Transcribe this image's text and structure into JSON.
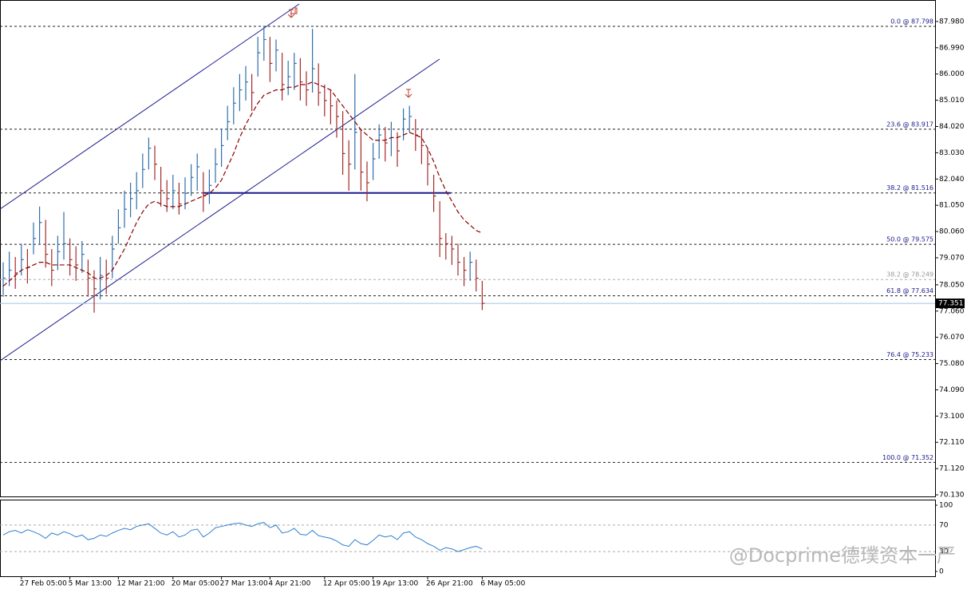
{
  "chart_data": [
    {
      "type": "ohlc",
      "categories": [
        null,
        null,
        null,
        "27 Feb 05:00",
        null,
        null,
        null,
        null,
        null,
        null,
        null,
        "5 Mar 13:00",
        null,
        null,
        null,
        null,
        null,
        null,
        null,
        "12 Mar 21:00",
        null,
        null,
        null,
        null,
        null,
        null,
        null,
        null,
        "20 Mar 05:00",
        null,
        null,
        null,
        null,
        null,
        null,
        null,
        "27 Mar 13:00",
        null,
        null,
        null,
        null,
        null,
        null,
        null,
        "4 Apr 21:00",
        null,
        null,
        null,
        null,
        null,
        null,
        null,
        null,
        "12 Apr 05:00",
        null,
        null,
        null,
        null,
        null,
        null,
        null,
        "19 Apr 13:00",
        null,
        null,
        null,
        null,
        null,
        null,
        null,
        null,
        "26 Apr 21:00",
        null,
        null,
        null,
        null,
        null,
        null,
        null,
        null,
        "6 May 05:00"
      ],
      "high": [
        78.9,
        79.3,
        79.1,
        79.6,
        79.4,
        80.4,
        81.0,
        80.5,
        79.4,
        79.9,
        80.8,
        79.8,
        79.5,
        79.7,
        79.0,
        78.6,
        79.1,
        79.0,
        79.9,
        80.9,
        81.6,
        81.9,
        82.3,
        83.0,
        83.6,
        83.3,
        82.5,
        82.0,
        82.2,
        81.9,
        82.1,
        82.6,
        83.0,
        82.3,
        82.4,
        83.2,
        83.9,
        84.8,
        85.5,
        86.0,
        86.3,
        86.0,
        87.4,
        87.798,
        87.4,
        87.3,
        86.8,
        86.5,
        86.8,
        86.6,
        86.1,
        87.7,
        86.4,
        85.6,
        85.4,
        85.0,
        84.6,
        83.5,
        86.0,
        83.9,
        82.7,
        83.4,
        84.1,
        84.0,
        84.2,
        83.8,
        84.7,
        84.8,
        84.3,
        83.9,
        83.2,
        82.2,
        81.2,
        80.0,
        79.9,
        79.6,
        79.1,
        79.3,
        79.0,
        78.2
      ],
      "low": [
        77.6,
        78.0,
        77.9,
        78.4,
        78.1,
        79.2,
        79.6,
        78.7,
        78.0,
        78.6,
        79.0,
        78.4,
        78.2,
        78.5,
        77.6,
        77.0,
        77.5,
        77.7,
        78.3,
        79.6,
        80.2,
        80.6,
        80.9,
        81.7,
        82.4,
        82.0,
        81.0,
        80.8,
        80.9,
        80.7,
        80.9,
        81.4,
        81.6,
        80.8,
        81.1,
        81.9,
        82.5,
        83.5,
        84.1,
        84.6,
        85.0,
        84.6,
        85.9,
        86.5,
        85.7,
        86.1,
        85.0,
        85.2,
        85.4,
        85.0,
        84.8,
        85.3,
        84.8,
        84.4,
        84.1,
        83.6,
        82.2,
        81.6,
        82.4,
        81.6,
        81.2,
        82.0,
        82.8,
        82.7,
        82.9,
        82.5,
        83.5,
        83.8,
        83.1,
        82.6,
        81.8,
        80.8,
        79.1,
        79.0,
        78.8,
        78.4,
        78.0,
        78.2,
        77.8,
        77.1
      ],
      "close": [
        78.3,
        78.6,
        78.5,
        79.0,
        78.7,
        79.8,
        80.4,
        79.2,
        78.6,
        79.3,
        79.6,
        79.0,
        78.8,
        79.2,
        78.3,
        77.9,
        78.4,
        78.3,
        79.4,
        80.2,
        80.9,
        81.3,
        81.6,
        82.4,
        83.2,
        82.6,
        81.6,
        81.3,
        81.6,
        81.1,
        81.5,
        82.1,
        82.5,
        81.4,
        81.8,
        82.6,
        83.3,
        84.2,
        84.9,
        85.4,
        85.7,
        85.3,
        86.8,
        87.3,
        86.4,
        86.9,
        85.6,
        85.9,
        86.4,
        85.7,
        85.4,
        86.2,
        85.3,
        85.0,
        84.8,
        84.4,
        83.0,
        82.6,
        83.8,
        82.3,
        81.9,
        82.8,
        83.7,
        83.4,
        83.6,
        83.1,
        84.3,
        84.4,
        83.7,
        83.3,
        82.6,
        81.4,
        79.8,
        79.6,
        79.4,
        78.9,
        78.6,
        78.9,
        78.3,
        77.351
      ],
      "up_color": "#2f6fae",
      "down_color": "#a52a2a",
      "ma": {
        "color": "#8b0000",
        "values": [
          78.0,
          78.2,
          78.4,
          78.6,
          78.7,
          78.8,
          78.9,
          78.9,
          78.8,
          78.8,
          78.8,
          78.8,
          78.7,
          78.6,
          78.5,
          78.3,
          78.3,
          78.4,
          78.6,
          79.0,
          79.4,
          79.9,
          80.4,
          80.8,
          81.1,
          81.2,
          81.1,
          81.0,
          81.0,
          81.0,
          81.1,
          81.2,
          81.3,
          81.4,
          81.5,
          81.7,
          82.0,
          82.5,
          83.0,
          83.6,
          84.1,
          84.5,
          84.9,
          85.2,
          85.3,
          85.4,
          85.4,
          85.5,
          85.5,
          85.6,
          85.6,
          85.7,
          85.6,
          85.5,
          85.4,
          85.1,
          84.8,
          84.5,
          84.2,
          83.9,
          83.7,
          83.5,
          83.5,
          83.5,
          83.6,
          83.6,
          83.7,
          83.8,
          83.7,
          83.6,
          83.2,
          82.7,
          82.1,
          81.6,
          81.2,
          80.8,
          80.5,
          80.3,
          80.1,
          80.0
        ]
      },
      "fib_levels": [
        {
          "label": "0.0 @ 87.798",
          "value": 87.798,
          "color": "#1a1a8c"
        },
        {
          "label": "23.6 @ 83.917",
          "value": 83.917,
          "color": "#1a1a8c"
        },
        {
          "label": "38.2 @ 81.516",
          "value": 81.516,
          "color": "#1a1a8c"
        },
        {
          "label": "50.0 @ 79.575",
          "value": 79.575,
          "color": "#1a1a8c"
        },
        {
          "label": "38.2 @ 78.249",
          "value": 78.249,
          "color": "#9a9a9a"
        },
        {
          "label": "61.8 @ 77.634",
          "value": 77.634,
          "color": "#1a1a8c"
        },
        {
          "label": "76.4 @ 75.233",
          "value": 75.233,
          "color": "#1a1a8c"
        },
        {
          "label": "100.0 @ 71.352",
          "value": 71.352,
          "color": "#1a1a8c"
        }
      ],
      "last_price": 77.351,
      "ylim": [
        70.07,
        88.7
      ],
      "yticks": [
        {
          "value": 87.98,
          "label": "87.980"
        },
        {
          "value": 86.99,
          "label": "86.990"
        },
        {
          "value": 86.0,
          "label": "86.000"
        },
        {
          "value": 85.01,
          "label": "85.010"
        },
        {
          "value": 84.02,
          "label": "84.020"
        },
        {
          "value": 83.03,
          "label": "83.030"
        },
        {
          "value": 82.04,
          "label": "82.040"
        },
        {
          "value": 81.05,
          "label": "81.050"
        },
        {
          "value": 80.06,
          "label": "80.060"
        },
        {
          "value": 79.07,
          "label": "79.070"
        },
        {
          "value": 78.05,
          "label": "78.050"
        },
        {
          "value": 77.06,
          "label": "77.060"
        },
        {
          "value": 76.07,
          "label": "76.070"
        },
        {
          "value": 75.08,
          "label": "75.080"
        },
        {
          "value": 74.09,
          "label": "74.090"
        },
        {
          "value": 73.1,
          "label": "73.100"
        },
        {
          "value": 72.11,
          "label": "72.110"
        },
        {
          "value": 71.12,
          "label": "71.120"
        },
        {
          "value": 70.13,
          "label": "70.130"
        }
      ]
    },
    {
      "type": "line",
      "color": "#2f7fd0",
      "values": [
        55,
        60,
        62,
        58,
        63,
        60,
        56,
        50,
        58,
        55,
        60,
        57,
        52,
        55,
        48,
        50,
        55,
        53,
        58,
        62,
        65,
        63,
        68,
        70,
        72,
        65,
        58,
        55,
        60,
        52,
        55,
        62,
        64,
        52,
        58,
        66,
        68,
        70,
        72,
        73,
        70,
        68,
        72,
        74,
        66,
        70,
        58,
        60,
        65,
        56,
        55,
        62,
        54,
        52,
        50,
        46,
        40,
        38,
        48,
        42,
        40,
        47,
        55,
        52,
        54,
        48,
        58,
        60,
        52,
        48,
        42,
        38,
        32,
        36,
        34,
        30,
        33,
        36,
        38,
        34
      ],
      "ylim": [
        0,
        100
      ],
      "yticks": [
        100,
        70,
        30,
        0
      ],
      "grid": true
    }
  ],
  "watermark": "@Docprime德璞资本一严"
}
